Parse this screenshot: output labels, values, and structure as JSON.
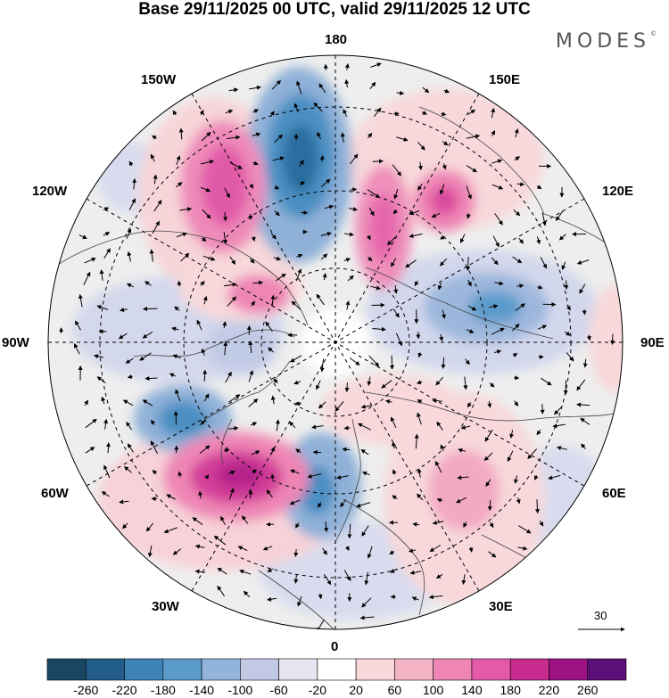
{
  "header": {
    "title": "Base 29/11/2025 00 UTC, valid 29/11/2025 12 UTC",
    "brand": "MODES",
    "brand_mark": "©"
  },
  "map": {
    "projection": "north-polar-stereographic",
    "longitude_labels": {
      "top": "180",
      "upper_right": "150E",
      "right_upper": "120E",
      "right": "90E",
      "right_lower": "60E",
      "lower_right": "30E",
      "bottom": "0",
      "lower_left": "30W",
      "left_lower": "60W",
      "left": "90W",
      "left_upper": "120W",
      "upper_left": "150W"
    },
    "reference_vector": {
      "label": "30"
    },
    "colors": {
      "negative_strong": "#1d4f7a",
      "negative_mid": "#4b91c4",
      "negative_weak": "#cdd3ea",
      "neutral": "#eeeeee",
      "positive_weak": "#f7d4d6",
      "positive_mid": "#ea83b6",
      "positive_strong": "#bf2c88"
    }
  },
  "colorbar": {
    "ticks": [
      "-260",
      "-220",
      "-180",
      "-140",
      "-100",
      "-60",
      "-20",
      "20",
      "60",
      "100",
      "140",
      "180",
      "220",
      "260"
    ],
    "colors": [
      "#1a4563",
      "#225d89",
      "#3d83b6",
      "#5b9bcb",
      "#93b4da",
      "#c2c9e4",
      "#e6e4f1",
      "#ffffff",
      "#f8d8da",
      "#f3b3c5",
      "#ee85b5",
      "#e459a9",
      "#c62b8d",
      "#9b1280",
      "#5c0f78"
    ]
  }
}
